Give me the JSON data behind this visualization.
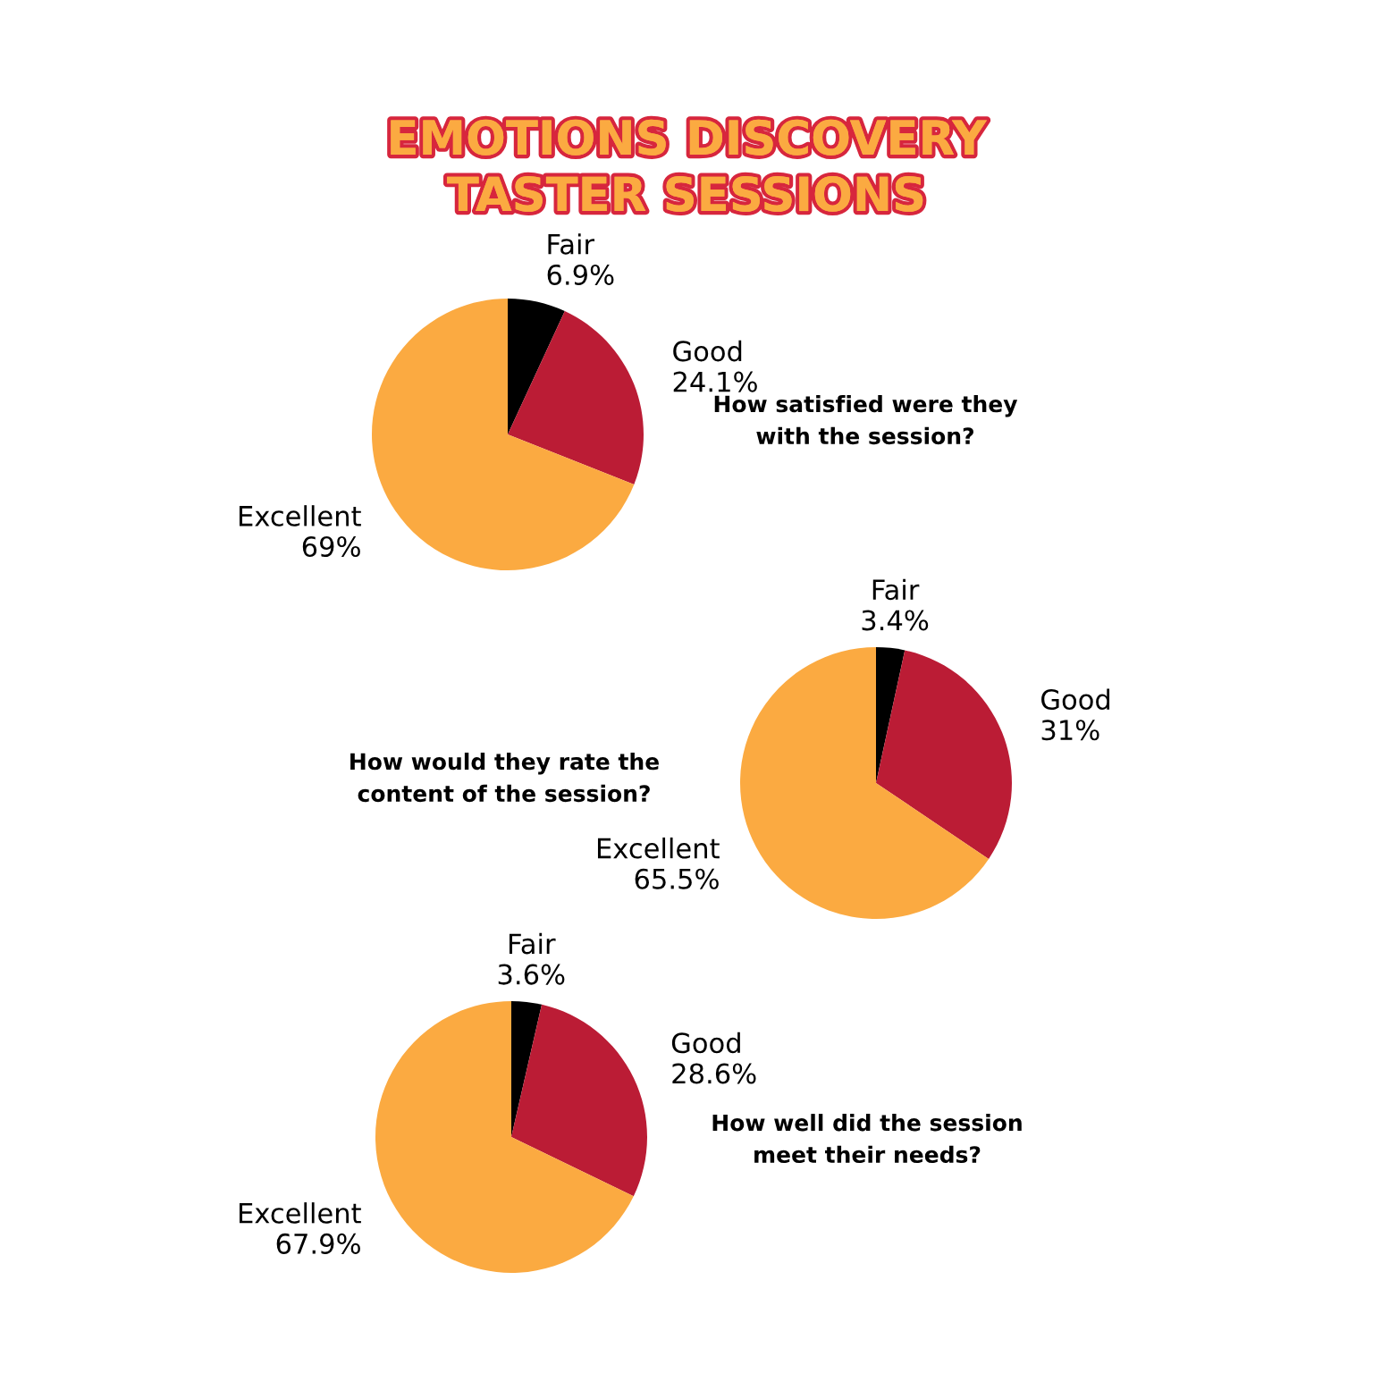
{
  "chart_data": [
    {
      "type": "pie",
      "title": "EMOTIONS DISCOVERY TASTER SESSIONS",
      "subtitle": "How satisfied were they with the session?",
      "categories": [
        "Fair",
        "Good",
        "Excellent"
      ],
      "values": [
        6.9,
        24.1,
        69
      ],
      "value_labels": [
        "6.9%",
        "24.1%",
        "69%"
      ],
      "colors": [
        "#000000",
        "#bb1c35",
        "#fbaa41"
      ]
    },
    {
      "type": "pie",
      "subtitle": "How would they rate the content of the session?",
      "categories": [
        "Fair",
        "Good",
        "Excellent"
      ],
      "values": [
        3.4,
        31,
        65.5
      ],
      "value_labels": [
        "3.4%",
        "31%",
        "65.5%"
      ],
      "colors": [
        "#000000",
        "#bb1c35",
        "#fbaa41"
      ]
    },
    {
      "type": "pie",
      "subtitle": "How well did the session meet their needs?",
      "categories": [
        "Fair",
        "Good",
        "Excellent"
      ],
      "values": [
        3.6,
        28.6,
        67.9
      ],
      "value_labels": [
        "3.6%",
        "28.6%",
        "67.9%"
      ],
      "colors": [
        "#000000",
        "#bb1c35",
        "#fbaa41"
      ]
    }
  ]
}
